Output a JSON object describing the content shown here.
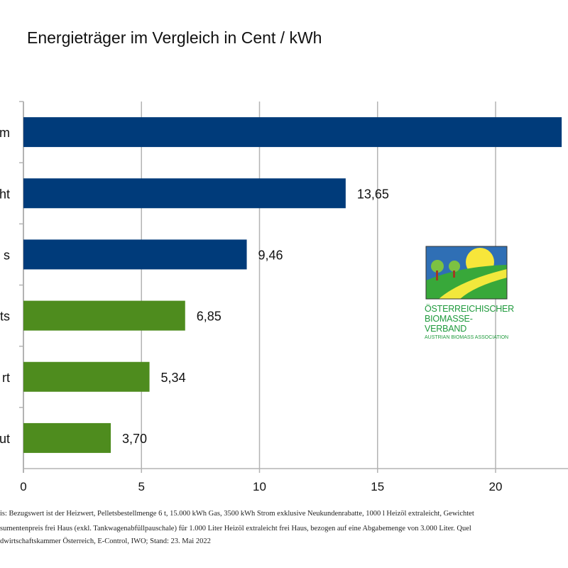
{
  "chart_data": {
    "type": "bar",
    "orientation": "horizontal",
    "title": "Energieträger im Vergleich in Cent / kWh",
    "categories": [
      "m",
      "ht",
      "s",
      "ts",
      "rt",
      "ut"
    ],
    "values": [
      22.8,
      13.65,
      9.46,
      6.85,
      5.34,
      3.7
    ],
    "data_labels": [
      "",
      "13,65",
      "9,46",
      "6,85",
      "5,34",
      "3,70"
    ],
    "bar_colors": [
      "#003b7a",
      "#003b7a",
      "#003b7a",
      "#4e8c1e",
      "#4e8c1e",
      "#4e8c1e"
    ],
    "x_ticks": [
      "0",
      "5",
      "10",
      "15",
      "20"
    ],
    "xlim": [
      0,
      23
    ],
    "grid": "vertical",
    "legend": "none"
  },
  "footnote": [
    "is: Bezugswert ist der Heizwert, Pelletsbestellmenge 6 t, 15.000 kWh Gas, 3500 kWh Strom exklusive Neukundenrabatte, 1000 l Heizöl extraleicht, Gewichtet",
    "sumentenpreis frei Haus (exkl. Tankwagenabfüllpauschale) für 1.000 Liter Heizöl extraleicht frei Haus, bezogen auf eine Abgabemenge von 3.000 Liter. Quel",
    "dwirtschaftskammer Österreich, E-Control, IWO; Stand: 23. Mai 2022"
  ],
  "logo": {
    "line1": "ÖSTERREICHISCHER",
    "line2": "BIOMASSE-VERBAND",
    "line3": "AUSTRIAN BIOMASS ASSOCIATION"
  }
}
